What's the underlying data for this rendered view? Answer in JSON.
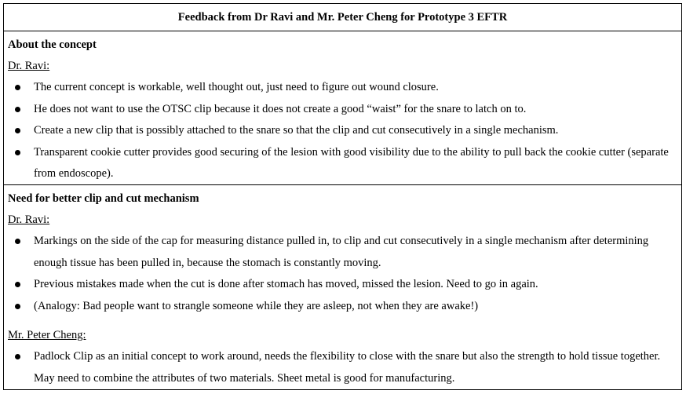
{
  "title": "Feedback from Dr Ravi and Mr. Peter Cheng for Prototype 3 EFTR",
  "sections": [
    {
      "heading": "About the concept",
      "groups": [
        {
          "person": "Dr. Ravi:",
          "items": [
            "The current concept is workable, well thought out, just need to figure out wound closure.",
            "He does not want to use the OTSC clip because it does not create a good “waist” for the snare to latch on to.",
            "Create a new clip that is possibly attached to the snare so that the clip and cut consecutively in a single mechanism.",
            "Transparent cookie cutter provides good securing of the lesion with good visibility due to the ability to pull back the cookie cutter (separate from endoscope)."
          ]
        }
      ]
    },
    {
      "heading": "Need for better clip and cut mechanism",
      "groups": [
        {
          "person": "Dr. Ravi:",
          "items": [
            "Markings on the side of the cap for measuring distance pulled in, to clip and cut consecutively in a single mechanism after determining enough tissue has been pulled in, because the stomach is constantly moving.",
            "Previous mistakes made when the cut is done after stomach has moved, missed the lesion. Need to go in again.",
            "(Analogy: Bad people want to strangle someone while they are asleep, not when they are awake!)"
          ]
        },
        {
          "person": "Mr. Peter Cheng:",
          "items": [
            "Padlock Clip as an initial concept to work around, needs the flexibility to close with the snare but also the strength to hold tissue together. May need to combine the attributes of two materials. Sheet metal is good for manufacturing."
          ]
        }
      ]
    }
  ]
}
